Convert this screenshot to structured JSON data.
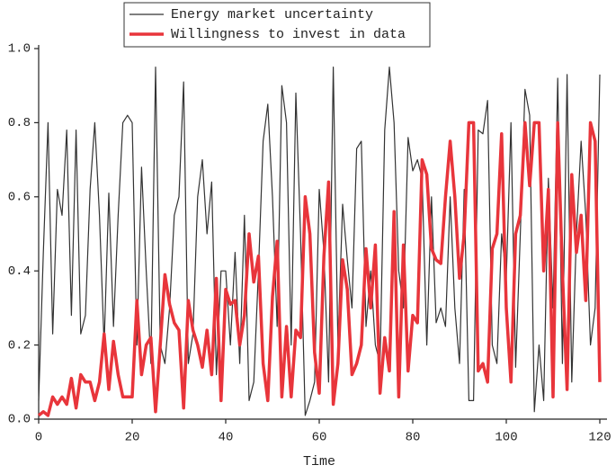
{
  "chart_data": {
    "type": "line",
    "x_label": "Time",
    "x": [
      0,
      1,
      2,
      3,
      4,
      5,
      6,
      7,
      8,
      9,
      10,
      11,
      12,
      13,
      14,
      15,
      16,
      17,
      18,
      19,
      20,
      21,
      22,
      23,
      24,
      25,
      26,
      27,
      28,
      29,
      30,
      31,
      32,
      33,
      34,
      35,
      36,
      37,
      38,
      39,
      40,
      41,
      42,
      43,
      44,
      45,
      46,
      47,
      48,
      49,
      50,
      51,
      52,
      53,
      54,
      55,
      56,
      57,
      58,
      59,
      60,
      61,
      62,
      63,
      64,
      65,
      66,
      67,
      68,
      69,
      70,
      71,
      72,
      73,
      74,
      75,
      76,
      77,
      78,
      79,
      80,
      81,
      82,
      83,
      84,
      85,
      86,
      87,
      88,
      89,
      90,
      91,
      92,
      93,
      94,
      95,
      96,
      97,
      98,
      99,
      100,
      101,
      102,
      103,
      104,
      105,
      106,
      107,
      108,
      109,
      110,
      111,
      112,
      113,
      114,
      115,
      116,
      117,
      118,
      119,
      120
    ],
    "series": [
      {
        "name": "Energy market uncertainty",
        "color": "#333333",
        "width": 1.2,
        "values": [
          0.05,
          0.45,
          0.8,
          0.23,
          0.62,
          0.55,
          0.78,
          0.28,
          0.78,
          0.23,
          0.28,
          0.62,
          0.8,
          0.55,
          0.2,
          0.61,
          0.25,
          0.55,
          0.8,
          0.82,
          0.8,
          0.2,
          0.68,
          0.4,
          0.15,
          0.95,
          0.2,
          0.15,
          0.3,
          0.55,
          0.6,
          0.91,
          0.15,
          0.23,
          0.6,
          0.7,
          0.5,
          0.64,
          0.12,
          0.4,
          0.4,
          0.2,
          0.45,
          0.15,
          0.55,
          0.05,
          0.1,
          0.4,
          0.75,
          0.85,
          0.6,
          0.25,
          0.9,
          0.8,
          0.2,
          0.88,
          0.5,
          0.01,
          0.05,
          0.1,
          0.62,
          0.45,
          0.1,
          0.95,
          0.2,
          0.58,
          0.43,
          0.3,
          0.73,
          0.75,
          0.25,
          0.4,
          0.2,
          0.15,
          0.78,
          0.95,
          0.8,
          0.4,
          0.3,
          0.76,
          0.67,
          0.7,
          0.65,
          0.2,
          0.6,
          0.26,
          0.3,
          0.25,
          0.6,
          0.3,
          0.15,
          0.62,
          0.05,
          0.05,
          0.78,
          0.77,
          0.86,
          0.2,
          0.15,
          0.5,
          0.38,
          0.8,
          0.14,
          0.5,
          0.89,
          0.82,
          0.02,
          0.2,
          0.05,
          0.65,
          0.3,
          0.92,
          0.15,
          0.93,
          0.1,
          0.5,
          0.75,
          0.55,
          0.2,
          0.3,
          0.93
        ]
      },
      {
        "name": "Willingness to invest in data",
        "color": "#e8353b",
        "width": 3.5,
        "values": [
          0.01,
          0.02,
          0.01,
          0.06,
          0.04,
          0.06,
          0.04,
          0.11,
          0.03,
          0.12,
          0.1,
          0.1,
          0.05,
          0.1,
          0.23,
          0.08,
          0.21,
          0.12,
          0.06,
          0.06,
          0.06,
          0.32,
          0.12,
          0.2,
          0.22,
          0.02,
          0.2,
          0.39,
          0.31,
          0.26,
          0.24,
          0.03,
          0.32,
          0.24,
          0.2,
          0.14,
          0.24,
          0.12,
          0.38,
          0.05,
          0.35,
          0.31,
          0.32,
          0.2,
          0.28,
          0.5,
          0.37,
          0.44,
          0.15,
          0.05,
          0.33,
          0.48,
          0.06,
          0.25,
          0.06,
          0.24,
          0.22,
          0.6,
          0.5,
          0.18,
          0.07,
          0.44,
          0.64,
          0.04,
          0.15,
          0.43,
          0.35,
          0.12,
          0.15,
          0.2,
          0.46,
          0.3,
          0.47,
          0.07,
          0.22,
          0.13,
          0.56,
          0.06,
          0.47,
          0.13,
          0.28,
          0.26,
          0.7,
          0.66,
          0.46,
          0.43,
          0.42,
          0.6,
          0.75,
          0.6,
          0.38,
          0.5,
          0.8,
          0.8,
          0.13,
          0.15,
          0.1,
          0.46,
          0.5,
          0.77,
          0.3,
          0.1,
          0.5,
          0.55,
          0.8,
          0.63,
          0.8,
          0.8,
          0.4,
          0.62,
          0.06,
          0.8,
          0.4,
          0.08,
          0.66,
          0.45,
          0.55,
          0.32,
          0.8,
          0.75,
          0.1
        ]
      }
    ],
    "xlim": [
      0,
      120
    ],
    "xticks": [
      0,
      20,
      40,
      60,
      80,
      100,
      120
    ],
    "ylim": [
      0,
      1
    ],
    "yticks": [
      {
        "value": 0,
        "label": "0.0"
      },
      0.2,
      0.4,
      0.6,
      0.8,
      {
        "value": 1,
        "label": "1.0"
      }
    ],
    "grid": false,
    "legend": "top"
  }
}
